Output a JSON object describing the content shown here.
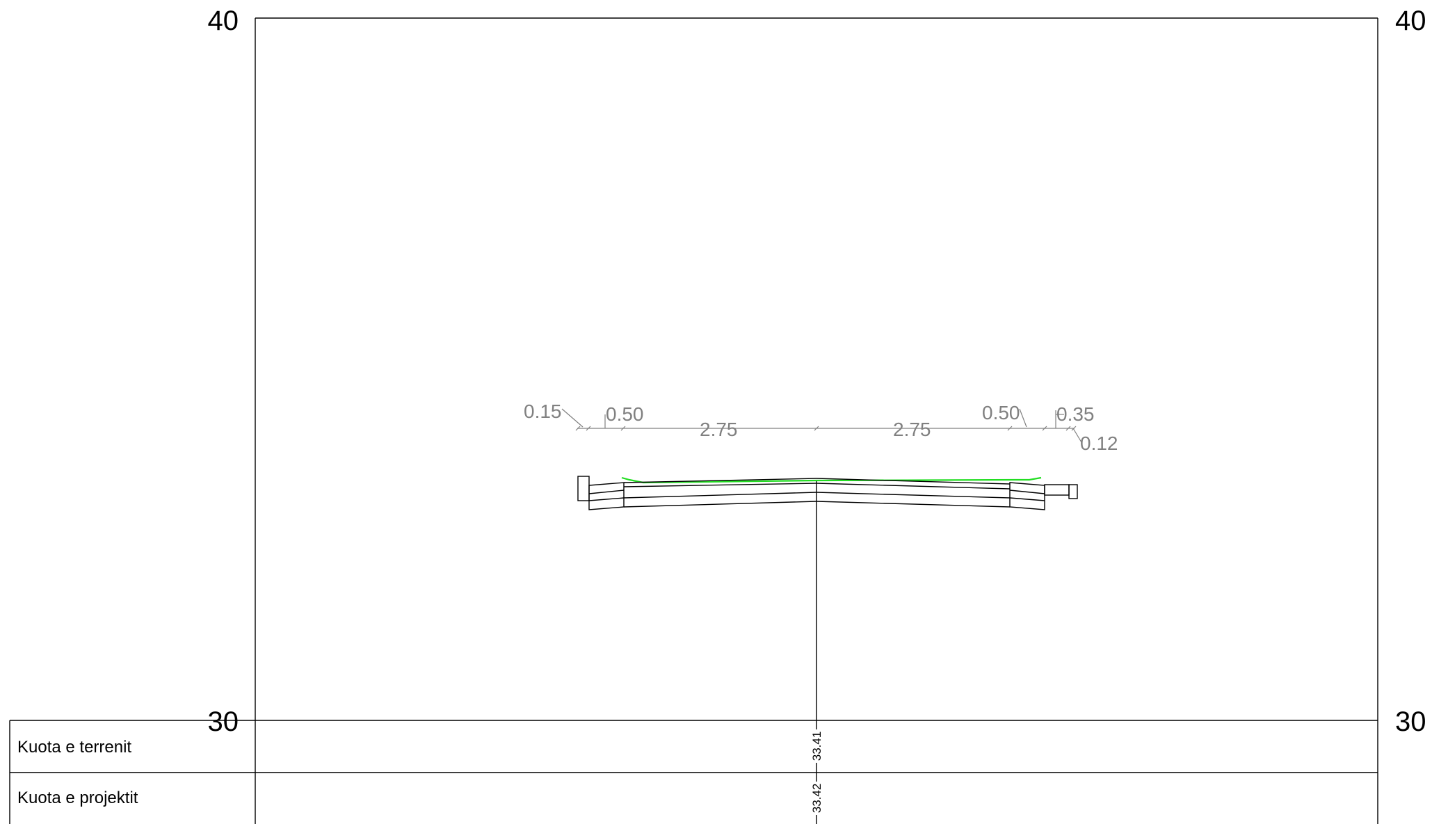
{
  "elevation_labels": {
    "top_left": "40",
    "top_right": "40",
    "bottom_left": "30",
    "bottom_right": "30"
  },
  "dimensions": {
    "left_curb": "0.15",
    "left_shoulder": "0.50",
    "left_lane": "2.75",
    "right_lane": "2.75",
    "right_shoulder": "0.50",
    "right_verge": "0.35",
    "right_curb": "0.12"
  },
  "table": {
    "rows": [
      {
        "label": "Kuota e terrenit",
        "value": "33.41"
      },
      {
        "label": "Kuota e projektit",
        "value": "33.42"
      }
    ]
  },
  "colors": {
    "frame": "#000000",
    "dimension_text": "#808080",
    "terrain_line": "#22dd22"
  }
}
